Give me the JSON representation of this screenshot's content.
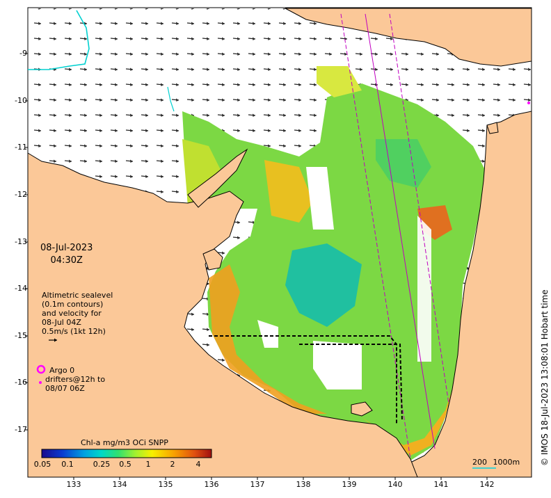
{
  "map": {
    "date_line1": "08-Jul-2023",
    "date_line2": "04:30Z",
    "lat_labels": [
      "-9",
      "-10",
      "-11",
      "-12",
      "-13",
      "-14",
      "-15",
      "-16",
      "-17"
    ],
    "lon_labels": [
      "133",
      "134",
      "135",
      "136",
      "137",
      "138",
      "139",
      "140",
      "141",
      "142"
    ],
    "colors": {
      "land": "#fbc898",
      "coast": "#000000",
      "argo": "#ff00ff",
      "track": "#c000c0",
      "contour": "#00d0d0"
    }
  },
  "legend": {
    "line1": "Altimetric sealevel",
    "line2": "(0.1m contours)",
    "line3": "and velocity for",
    "line4": "08-Jul 04Z",
    "line5": "0.5m/s (1kt 12h)"
  },
  "argo": {
    "line1": "Argo 0",
    "line2": "drifters@12h to",
    "line3": "08/07 06Z"
  },
  "colorbar": {
    "title": "Chl-a mg/m3 OCi SNPP",
    "ticks": [
      "0.05",
      "0.1",
      "0.25",
      "0.5",
      "1",
      "2",
      "4"
    ],
    "stops": [
      "#1a0a8c",
      "#0a3ad0",
      "#00a0e0",
      "#00d8c8",
      "#30e070",
      "#a0f030",
      "#f8f000",
      "#f8a000",
      "#e05010",
      "#a01010"
    ]
  },
  "copyright": "© IMOS 18-Jul-2023 13:08:01 Hobart time",
  "scale": {
    "label_a": "200",
    "label_b": "1000m"
  }
}
